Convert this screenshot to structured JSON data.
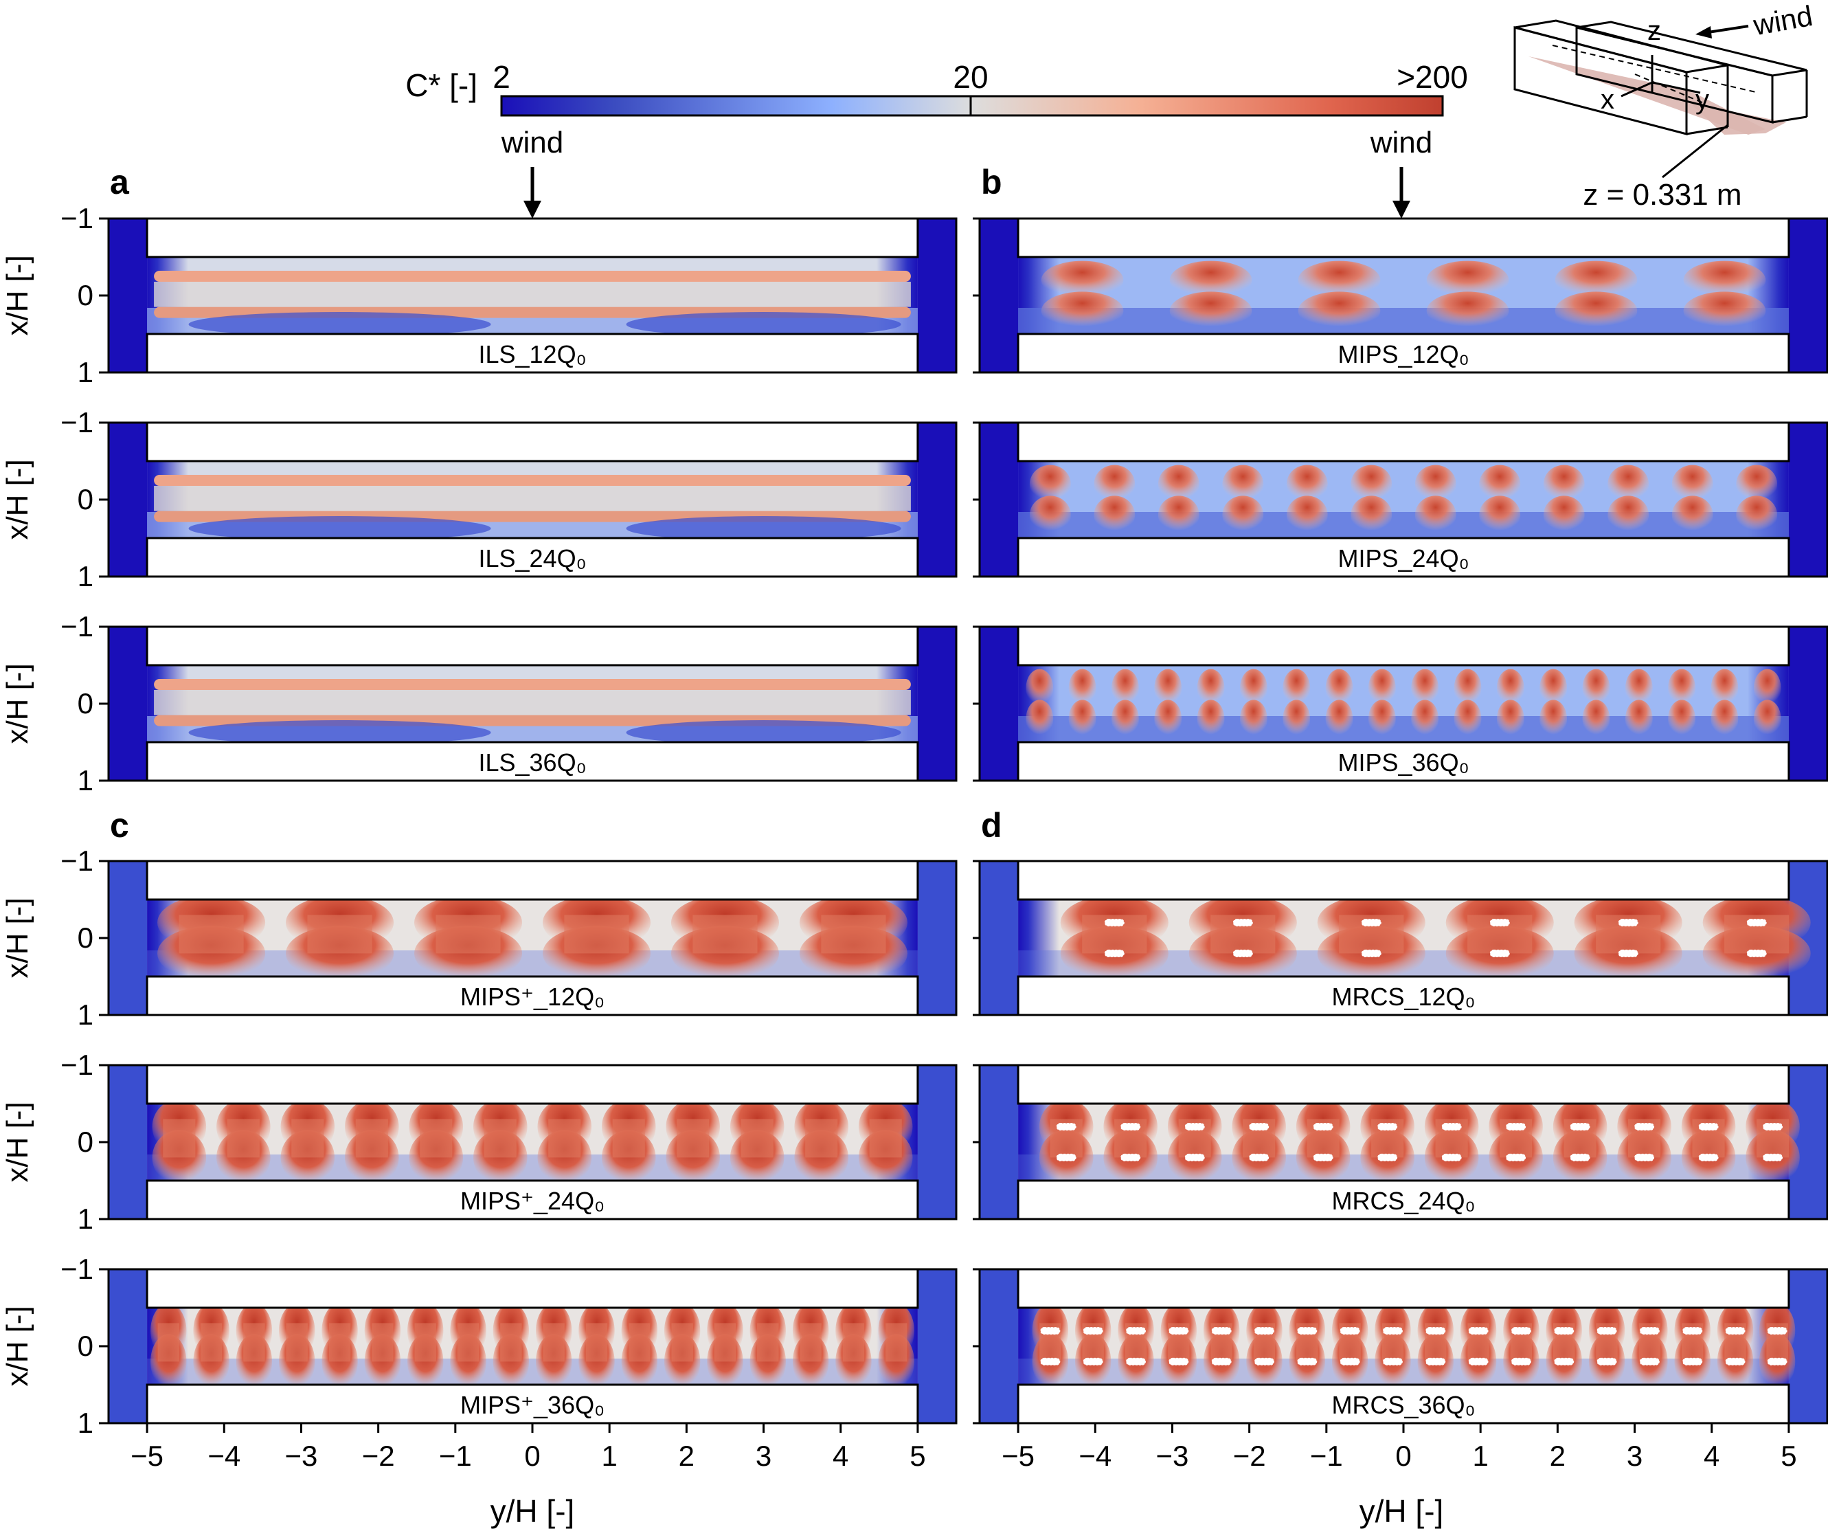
{
  "colorbar": {
    "label": "C* [-]",
    "ticks": [
      "2",
      "20",
      ">200"
    ],
    "colors": [
      "#1a0fb8",
      "#3b4cc0",
      "#8db0fe",
      "#dddddd",
      "#f5b094",
      "#e0654e",
      "#b40426"
    ],
    "scale": "log"
  },
  "wind_labels": [
    "wind",
    "wind"
  ],
  "inset": {
    "axes": [
      "z",
      "x",
      "y"
    ],
    "wind_label": "wind",
    "plane_label": "z = 0.331 m"
  },
  "panel_letters": [
    "a",
    "b",
    "c",
    "d"
  ],
  "chart_data": {
    "type": "heatmap",
    "variable": "C* [-]",
    "ylabel": "x/H [-]",
    "xlabel": "y/H [-]",
    "xlim": [
      -5.5,
      5.5
    ],
    "ylim": [
      -1,
      1
    ],
    "xticks": [
      "-5",
      "-4",
      "-3",
      "-2",
      "-1",
      "0",
      "1",
      "2",
      "3",
      "4",
      "5"
    ],
    "yticks": [
      "-1",
      "0",
      "1"
    ],
    "panels": [
      {
        "group": "a",
        "label": "ILS_12Q₀",
        "source_type": "ILS",
        "emission": 12,
        "sources": 0
      },
      {
        "group": "a",
        "label": "ILS_24Q₀",
        "source_type": "ILS",
        "emission": 24,
        "sources": 0
      },
      {
        "group": "a",
        "label": "ILS_36Q₀",
        "source_type": "ILS",
        "emission": 36,
        "sources": 0
      },
      {
        "group": "b",
        "label": "MIPS_12Q₀",
        "source_type": "MIPS",
        "emission": 12,
        "sources": 6
      },
      {
        "group": "b",
        "label": "MIPS_24Q₀",
        "source_type": "MIPS",
        "emission": 24,
        "sources": 12
      },
      {
        "group": "b",
        "label": "MIPS_36Q₀",
        "source_type": "MIPS",
        "emission": 36,
        "sources": 18
      },
      {
        "group": "c",
        "label": "MIPS⁺_12Q₀",
        "source_type": "MIPS+",
        "emission": 12,
        "sources": 6
      },
      {
        "group": "c",
        "label": "MIPS⁺_24Q₀",
        "source_type": "MIPS+",
        "emission": 24,
        "sources": 12
      },
      {
        "group": "c",
        "label": "MIPS⁺_36Q₀",
        "source_type": "MIPS+",
        "emission": 36,
        "sources": 18
      },
      {
        "group": "d",
        "label": "MRCS_12Q₀",
        "source_type": "MRCS",
        "emission": 12,
        "sources": 6
      },
      {
        "group": "d",
        "label": "MRCS_24Q₀",
        "source_type": "MRCS",
        "emission": 24,
        "sources": 12
      },
      {
        "group": "d",
        "label": "MRCS_36Q₀",
        "source_type": "MRCS",
        "emission": 36,
        "sources": 18
      }
    ]
  }
}
